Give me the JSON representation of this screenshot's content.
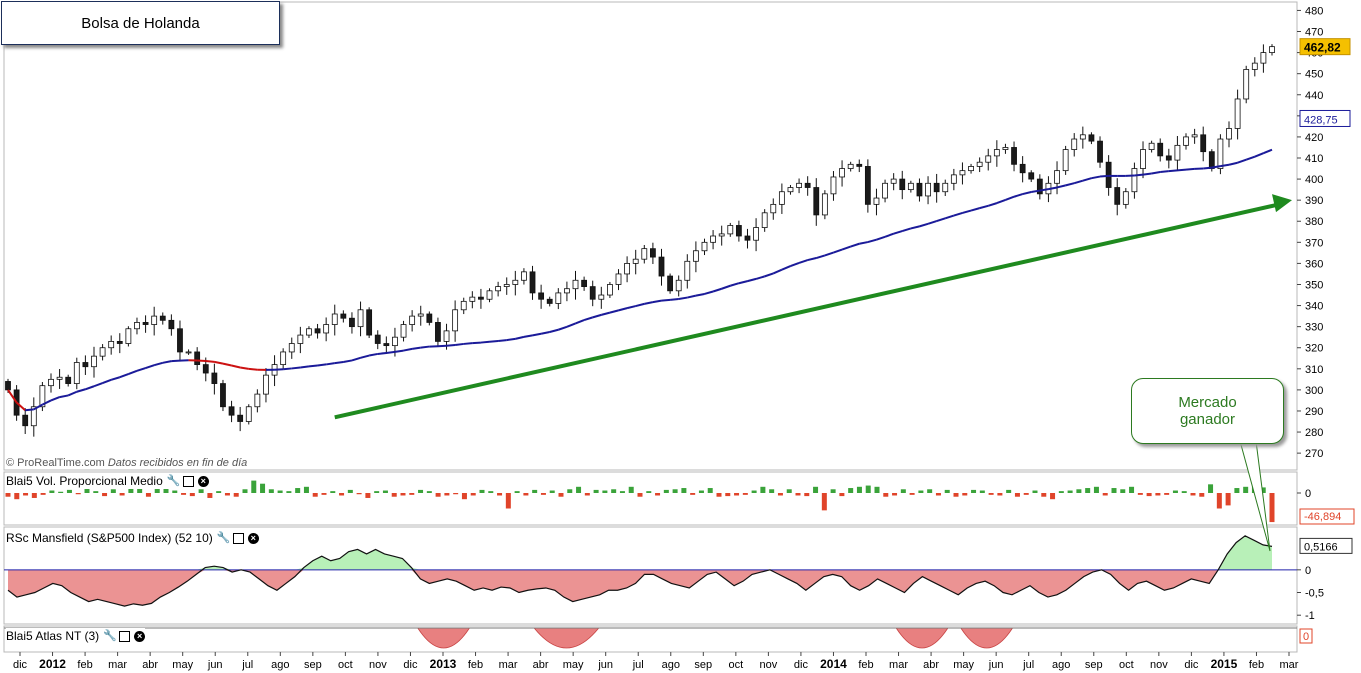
{
  "title": "Bolsa de Holanda",
  "credit": {
    "source": "© ProRealTime.com",
    "note": "Datos recibidos en fin de día"
  },
  "panels": {
    "volume": {
      "label": "Blai5 Vol. Proporcional Medio",
      "last_value": "-46,894",
      "zero_label": "0"
    },
    "mansfield": {
      "label": "RSc Mansfield (S&P500 Index) (52 10)",
      "last_value": "0,5166",
      "ticks": [
        "0",
        "-0,5",
        "-1"
      ]
    },
    "atlas": {
      "label": "Blai5 Atlas NT (3)",
      "last_value": "0"
    }
  },
  "callout": {
    "line1": "Mercado",
    "line2": "ganador"
  },
  "badges": {
    "price": "462,82",
    "ma": "428,75"
  },
  "colors": {
    "up": "#ffffff",
    "down": "#1a1a1a",
    "ma_up": "#1a1a99",
    "ma_down": "#cc1111",
    "trend": "#1f8a1f",
    "vol_pos": "#3aa33a",
    "vol_neg": "#e0442a",
    "rs_pos": "#b8f0b8",
    "rs_neg": "#e88080",
    "badge_price": "#f5c000"
  },
  "chart_data": {
    "type": "candlestick",
    "title": "Bolsa de Holanda",
    "price_axis": {
      "ticks": [
        270,
        280,
        290,
        300,
        310,
        320,
        330,
        340,
        350,
        360,
        370,
        380,
        390,
        400,
        410,
        420,
        430,
        440,
        450,
        460,
        470,
        480
      ],
      "range": [
        262,
        484
      ]
    },
    "x_axis_ticks": [
      {
        "label": "dic",
        "bold": false
      },
      {
        "label": "2012",
        "bold": true
      },
      {
        "label": "feb",
        "bold": false
      },
      {
        "label": "mar",
        "bold": false
      },
      {
        "label": "abr",
        "bold": false
      },
      {
        "label": "may",
        "bold": false
      },
      {
        "label": "jun",
        "bold": false
      },
      {
        "label": "jul",
        "bold": false
      },
      {
        "label": "ago",
        "bold": false
      },
      {
        "label": "sep",
        "bold": false
      },
      {
        "label": "oct",
        "bold": false
      },
      {
        "label": "nov",
        "bold": false
      },
      {
        "label": "dic",
        "bold": false
      },
      {
        "label": "2013",
        "bold": true
      },
      {
        "label": "feb",
        "bold": false
      },
      {
        "label": "mar",
        "bold": false
      },
      {
        "label": "abr",
        "bold": false
      },
      {
        "label": "may",
        "bold": false
      },
      {
        "label": "jun",
        "bold": false
      },
      {
        "label": "jul",
        "bold": false
      },
      {
        "label": "ago",
        "bold": false
      },
      {
        "label": "sep",
        "bold": false
      },
      {
        "label": "oct",
        "bold": false
      },
      {
        "label": "nov",
        "bold": false
      },
      {
        "label": "dic",
        "bold": false
      },
      {
        "label": "2014",
        "bold": true
      },
      {
        "label": "feb",
        "bold": false
      },
      {
        "label": "mar",
        "bold": false
      },
      {
        "label": "abr",
        "bold": false
      },
      {
        "label": "may",
        "bold": false
      },
      {
        "label": "jun",
        "bold": false
      },
      {
        "label": "jul",
        "bold": false
      },
      {
        "label": "ago",
        "bold": false
      },
      {
        "label": "sep",
        "bold": false
      },
      {
        "label": "oct",
        "bold": false
      },
      {
        "label": "nov",
        "bold": false
      },
      {
        "label": "dic",
        "bold": false
      },
      {
        "label": "2015",
        "bold": true
      },
      {
        "label": "feb",
        "bold": false
      },
      {
        "label": "mar",
        "bold": false
      }
    ],
    "weekly_close": [
      300,
      288,
      283,
      292,
      302,
      305,
      306,
      303,
      313,
      311,
      316,
      320,
      323,
      322,
      329,
      332,
      331,
      335,
      333,
      329,
      318,
      318,
      312,
      308,
      303,
      292,
      288,
      285,
      292,
      298,
      307,
      312,
      318,
      322,
      326,
      329,
      327,
      331,
      336,
      334,
      330,
      338,
      326,
      322,
      321,
      325,
      331,
      335,
      336,
      332,
      323,
      328,
      338,
      342,
      344,
      343,
      347,
      349,
      350,
      352,
      356,
      346,
      343,
      341,
      346,
      348,
      352,
      349,
      343,
      345,
      350,
      355,
      360,
      362,
      367,
      363,
      354,
      347,
      352,
      361,
      366,
      370,
      373,
      374,
      378,
      373,
      371,
      377,
      384,
      388,
      394,
      396,
      398,
      396,
      383,
      393,
      401,
      405,
      407,
      406,
      388,
      391,
      398,
      400,
      395,
      398,
      392,
      398,
      394,
      398,
      402,
      404,
      406,
      408,
      411,
      414,
      415,
      407,
      403,
      400,
      393,
      398,
      404,
      414,
      419,
      421,
      418,
      408,
      396,
      388,
      394,
      405,
      414,
      417,
      411,
      409,
      416,
      420,
      421,
      413,
      405,
      419,
      424,
      438,
      452,
      455,
      460,
      462.82
    ],
    "moving_average": {
      "period_weeks": 40,
      "last_value": 428.75
    },
    "trendline": {
      "from": {
        "date": "2012-08",
        "value": 287
      },
      "to": {
        "date": "2015-03",
        "value": 390
      }
    },
    "volume_indicator": {
      "name": "Blai5 Vol. Proporcional Medio",
      "last": -46.894,
      "values": [
        -6,
        -10,
        -4,
        -8,
        -3,
        4,
        2,
        5,
        -2,
        8,
        3,
        -5,
        6,
        -4,
        8,
        10,
        -6,
        12,
        9,
        4,
        -3,
        -5,
        6,
        -8,
        3,
        -4,
        -6,
        6,
        20,
        15,
        6,
        4,
        3,
        8,
        10,
        -6,
        -3,
        3,
        -4,
        5,
        -2,
        -8,
        3,
        4,
        -6,
        -4,
        -3,
        5,
        3,
        -6,
        -4,
        -2,
        -10,
        -4,
        5,
        3,
        -4,
        -25,
        3,
        -4,
        5,
        -3,
        4,
        -6,
        6,
        10,
        -4,
        5,
        4,
        6,
        3,
        10,
        -6,
        3,
        -4,
        5,
        6,
        8,
        -3,
        4,
        8,
        -6,
        -5,
        -4,
        -3,
        4,
        10,
        6,
        -4,
        6,
        -4,
        -5,
        10,
        -28,
        6,
        -5,
        8,
        10,
        12,
        10,
        -6,
        -4,
        6,
        -3,
        4,
        6,
        -4,
        5,
        -6,
        -4,
        5,
        4,
        -3,
        -4,
        5,
        -6,
        -3,
        4,
        -6,
        -10,
        3,
        4,
        6,
        8,
        10,
        -4,
        8,
        6,
        10,
        -3,
        -5,
        -4,
        -3,
        4,
        3,
        -4,
        -6,
        14,
        -25,
        -20,
        8,
        10,
        14,
        9,
        -46.894
      ]
    },
    "mansfield_rs": {
      "name": "RSc Mansfield (S&P500 Index) (52 10)",
      "last": 0.5166,
      "range": [
        -1.15,
        0.9
      ],
      "values": [
        -0.45,
        -0.6,
        -0.55,
        -0.5,
        -0.4,
        -0.3,
        -0.35,
        -0.5,
        -0.6,
        -0.7,
        -0.65,
        -0.7,
        -0.75,
        -0.8,
        -0.75,
        -0.78,
        -0.74,
        -0.6,
        -0.5,
        -0.38,
        -0.25,
        -0.1,
        0.05,
        0.08,
        0.05,
        -0.05,
        0.0,
        -0.05,
        -0.2,
        -0.35,
        -0.45,
        -0.3,
        -0.15,
        0.05,
        0.2,
        0.3,
        0.2,
        0.25,
        0.4,
        0.45,
        0.35,
        0.45,
        0.35,
        0.3,
        0.25,
        0.05,
        -0.2,
        -0.3,
        -0.25,
        -0.2,
        -0.25,
        -0.35,
        -0.45,
        -0.4,
        -0.45,
        -0.38,
        -0.4,
        -0.5,
        -0.45,
        -0.42,
        -0.4,
        -0.45,
        -0.6,
        -0.7,
        -0.65,
        -0.6,
        -0.55,
        -0.45,
        -0.45,
        -0.4,
        -0.3,
        -0.1,
        -0.1,
        -0.2,
        -0.3,
        -0.35,
        -0.4,
        -0.25,
        -0.1,
        -0.05,
        -0.2,
        -0.35,
        -0.25,
        -0.1,
        -0.05,
        0.0,
        -0.1,
        -0.2,
        -0.3,
        -0.45,
        -0.3,
        -0.15,
        -0.1,
        -0.15,
        -0.35,
        -0.45,
        -0.35,
        -0.2,
        -0.3,
        -0.4,
        -0.5,
        -0.3,
        -0.15,
        -0.25,
        -0.35,
        -0.45,
        -0.55,
        -0.4,
        -0.3,
        -0.25,
        -0.35,
        -0.5,
        -0.55,
        -0.45,
        -0.35,
        -0.5,
        -0.6,
        -0.55,
        -0.45,
        -0.3,
        -0.15,
        -0.05,
        0.0,
        -0.1,
        -0.3,
        -0.45,
        -0.3,
        -0.25,
        -0.35,
        -0.45,
        -0.4,
        -0.3,
        -0.2,
        -0.25,
        -0.3,
        0.0,
        0.35,
        0.6,
        0.75,
        0.65,
        0.55,
        0.5166
      ]
    },
    "atlas_nt": {
      "name": "Blai5 Atlas NT (3)",
      "last": 0
    }
  }
}
